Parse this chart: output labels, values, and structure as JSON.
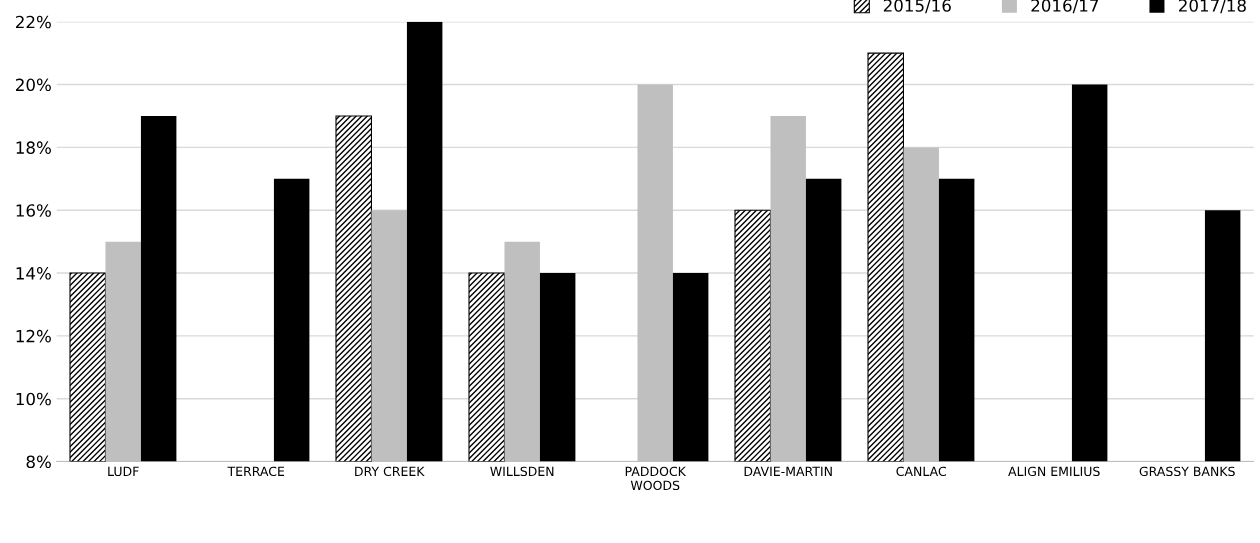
{
  "chart_data": {
    "type": "bar",
    "categories": [
      "LUDF",
      "TERRACE",
      "DRY CREEK",
      "WILLSDEN",
      "PADDOCK\nWOODS",
      "DAVIE-MARTIN",
      "CANLAC",
      "ALIGN EMILIUS",
      "GRASSY BANKS"
    ],
    "series": [
      {
        "name": "2015/16",
        "color": "#000000",
        "values": [
          14,
          null,
          19,
          14,
          null,
          16,
          21,
          null,
          null
        ]
      },
      {
        "name": "2016/17",
        "color": "#bfbfbf",
        "values": [
          15,
          null,
          16,
          15,
          20,
          19,
          18,
          null,
          null
        ]
      },
      {
        "name": "2017/18",
        "color": "#000000",
        "values": [
          19,
          17,
          22,
          14,
          14,
          17,
          17,
          20,
          16
        ]
      }
    ],
    "ylim": [
      8,
      22
    ],
    "yticks": [
      {
        "value": 8,
        "label": "8%"
      },
      {
        "value": 10,
        "label": "10%"
      },
      {
        "value": 12,
        "label": "12%"
      },
      {
        "value": 14,
        "label": "14%"
      },
      {
        "value": 16,
        "label": "16%"
      },
      {
        "value": 18,
        "label": "18%"
      },
      {
        "value": 20,
        "label": "20%"
      },
      {
        "value": 22,
        "label": "22%"
      }
    ],
    "grid": "y",
    "legend": "top right"
  }
}
